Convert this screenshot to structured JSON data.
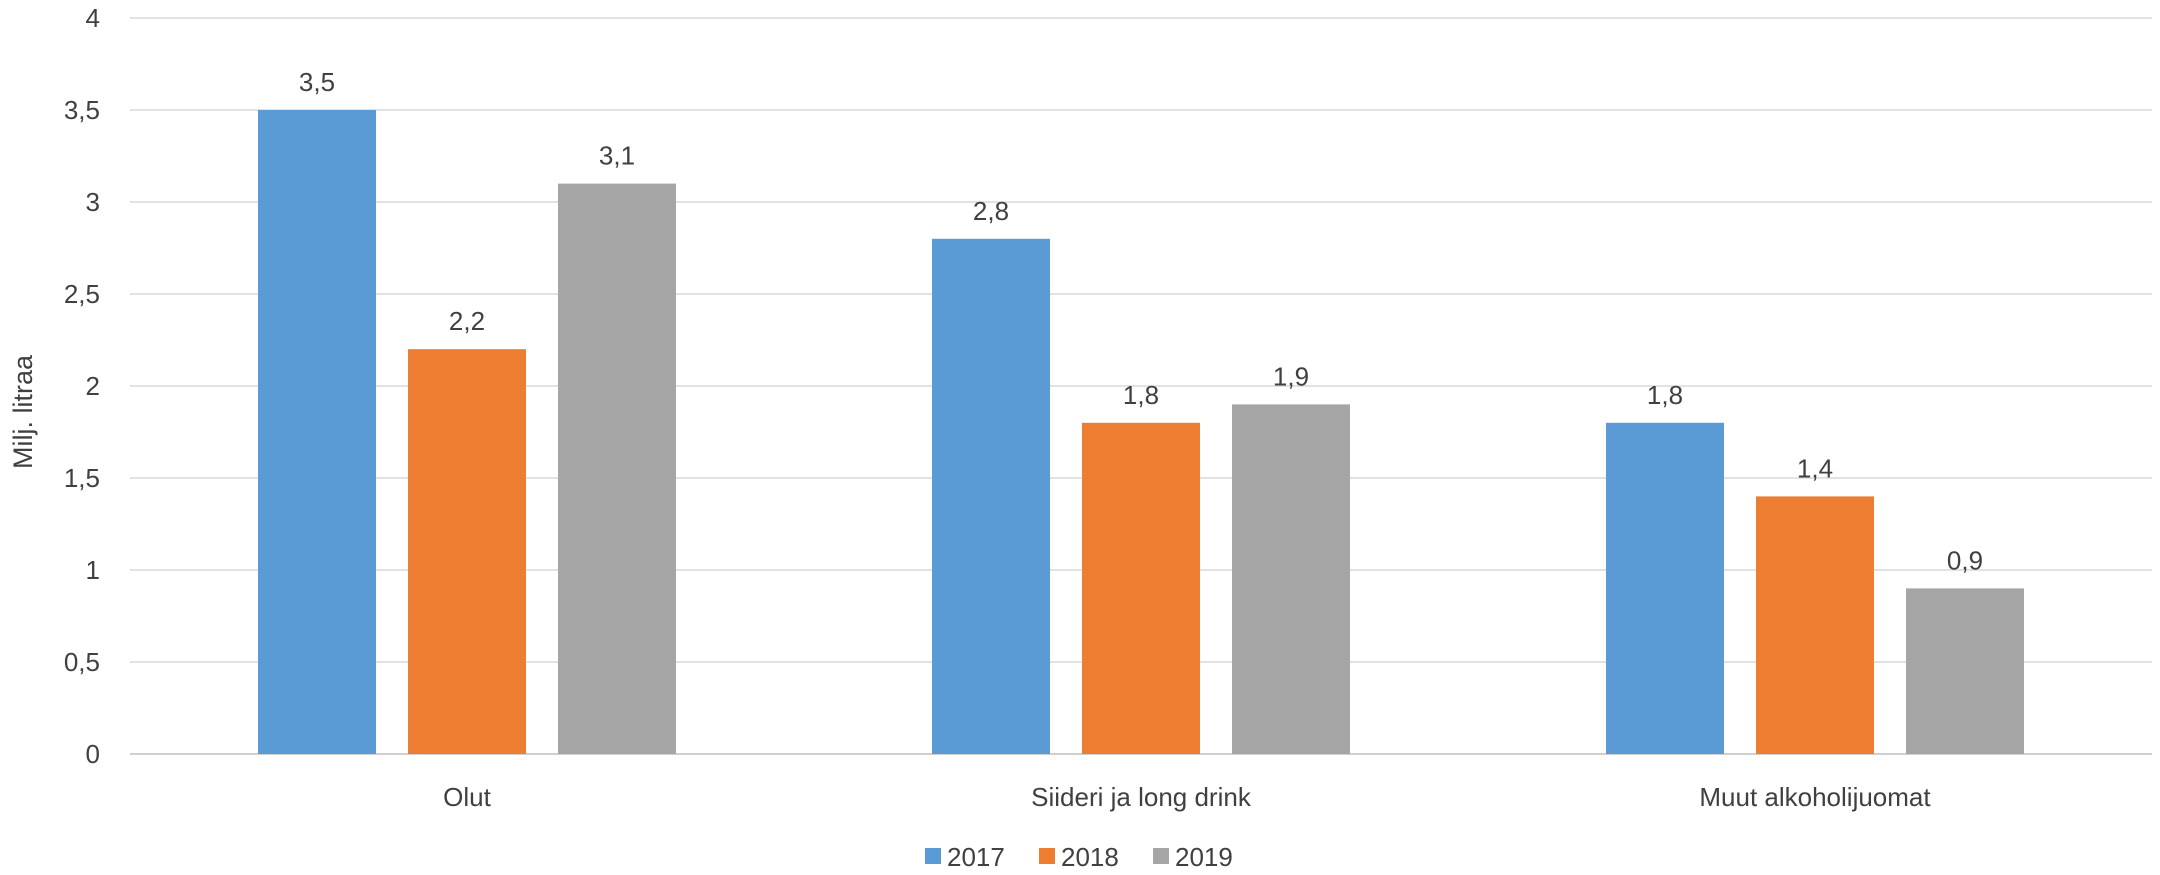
{
  "chart_data": {
    "type": "bar",
    "ylabel": "Milj. litraa",
    "xlabel": "",
    "ylim": [
      0,
      4
    ],
    "yticks": [
      "0",
      "0,5",
      "1",
      "1,5",
      "2",
      "2,5",
      "3",
      "3,5",
      "4"
    ],
    "ytick_values": [
      0,
      0.5,
      1,
      1.5,
      2,
      2.5,
      3,
      3.5,
      4
    ],
    "grid": true,
    "legend_position": "bottom",
    "categories": [
      "Olut",
      "Siideri ja long drink",
      "Muut alkoholijuomat"
    ],
    "series": [
      {
        "name": "2017",
        "color": "#5B9BD5",
        "values": [
          3.5,
          2.8,
          1.8
        ],
        "labels": [
          "3,5",
          "2,8",
          "1,8"
        ]
      },
      {
        "name": "2018",
        "color": "#ED7D31",
        "values": [
          2.2,
          1.8,
          1.4
        ],
        "labels": [
          "2,2",
          "1,8",
          "1,4"
        ]
      },
      {
        "name": "2019",
        "color": "#A5A5A5",
        "values": [
          3.1,
          1.9,
          0.9
        ],
        "labels": [
          "3,1",
          "1,9",
          "0,9"
        ]
      }
    ]
  }
}
